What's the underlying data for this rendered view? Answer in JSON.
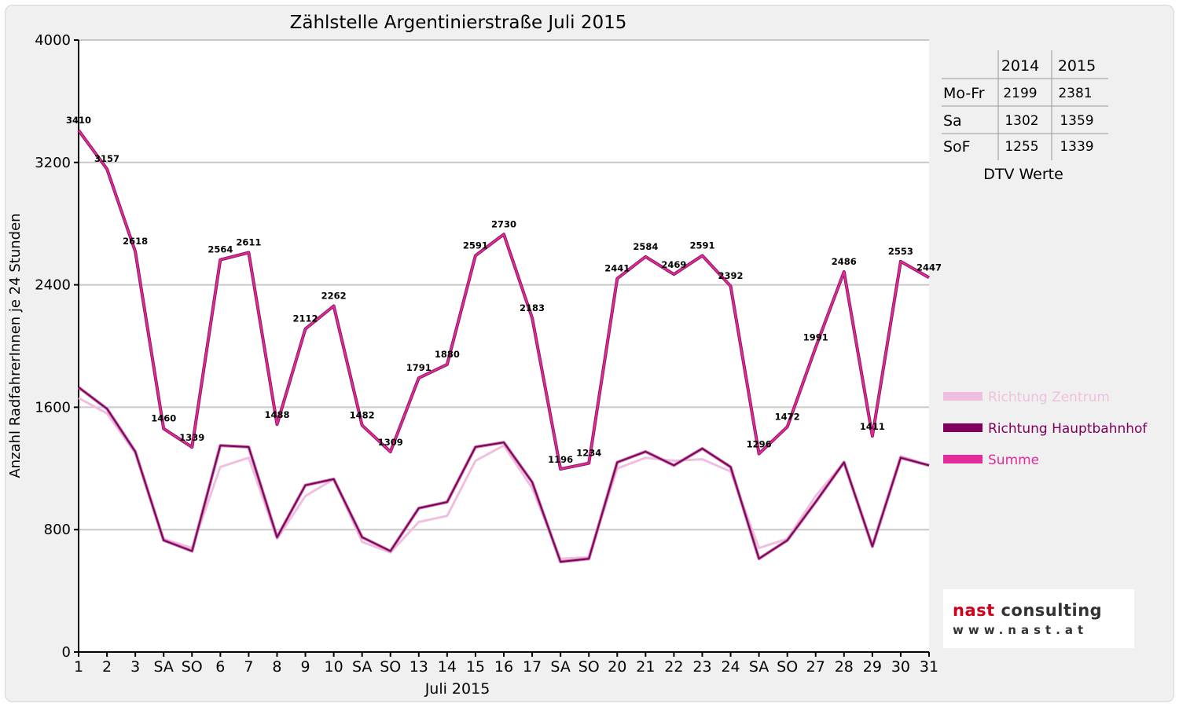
{
  "chart_data": {
    "type": "line",
    "title": "Zählstelle Argentinierstraße Juli 2015",
    "xlabel": "Juli 2015",
    "ylabel": "Anzahl RadfahrerInnen je 24 Stunden",
    "ylim": [
      0,
      4000
    ],
    "yticks": [
      "0",
      "800",
      "1600",
      "2400",
      "3200",
      "4000"
    ],
    "grid": "horizontal",
    "legend_position": "right",
    "categories": [
      "1",
      "2",
      "3",
      "SA",
      "SO",
      "6",
      "7",
      "8",
      "9",
      "10",
      "SA",
      "SO",
      "13",
      "14",
      "15",
      "16",
      "17",
      "SA",
      "SO",
      "20",
      "21",
      "22",
      "23",
      "24",
      "SA",
      "SO",
      "27",
      "28",
      "29",
      "30",
      "31"
    ],
    "red_categories": [
      4,
      11,
      18,
      25
    ],
    "series": [
      {
        "name": "Richtung Zentrum",
        "color": "#f0bfe0",
        "values": [
          1660,
          1560,
          1300,
          740,
          680,
          1210,
          1270,
          740,
          1020,
          1130,
          720,
          650,
          850,
          890,
          1250,
          1350,
          1070,
          610,
          620,
          1200,
          1270,
          1250,
          1260,
          1180,
          680,
          740,
          1020,
          1240,
          700,
          1280,
          1220
        ]
      },
      {
        "name": "Richtung Hauptbahnhof",
        "color": "#800060",
        "values": [
          1730,
          1590,
          1310,
          730,
          660,
          1350,
          1340,
          750,
          1090,
          1130,
          750,
          660,
          940,
          980,
          1340,
          1370,
          1110,
          590,
          610,
          1240,
          1310,
          1220,
          1330,
          1210,
          610,
          730,
          980,
          1240,
          690,
          1270,
          1220
        ]
      },
      {
        "name": "Summe",
        "color": "#e6299a",
        "values": [
          3410,
          3157,
          2618,
          1460,
          1339,
          2564,
          2611,
          1488,
          2112,
          2262,
          1482,
          1309,
          1791,
          1880,
          2591,
          2730,
          2183,
          1196,
          1234,
          2441,
          2584,
          2469,
          2591,
          2392,
          1296,
          1472,
          1991,
          2486,
          1411,
          2553,
          2447
        ]
      }
    ],
    "data_labels": [
      "3410",
      "3157",
      "2618",
      "1460",
      "1339",
      "2564",
      "2611",
      "1488",
      "2112",
      "2262",
      "1482",
      "1309",
      "1791",
      "1880",
      "2591",
      "2730",
      "2183",
      "1196",
      "1234",
      "2441",
      "2584",
      "2469",
      "2591",
      "2392",
      "1296",
      "1472",
      "1991",
      "2486",
      "1411",
      "2553",
      "2447"
    ]
  },
  "dtv_table": {
    "caption": "DTV Werte",
    "headers": [
      "2014",
      "2015"
    ],
    "rows": [
      {
        "label": "Mo-Fr",
        "v2014": "2199",
        "v2015": "2381"
      },
      {
        "label": "Sa",
        "v2014": "1302",
        "v2015": "1359"
      },
      {
        "label": "SoF",
        "v2014": "1255",
        "v2015": "1339"
      }
    ]
  },
  "logo": {
    "brand": "nast consulting",
    "url": "www.nast.at"
  }
}
